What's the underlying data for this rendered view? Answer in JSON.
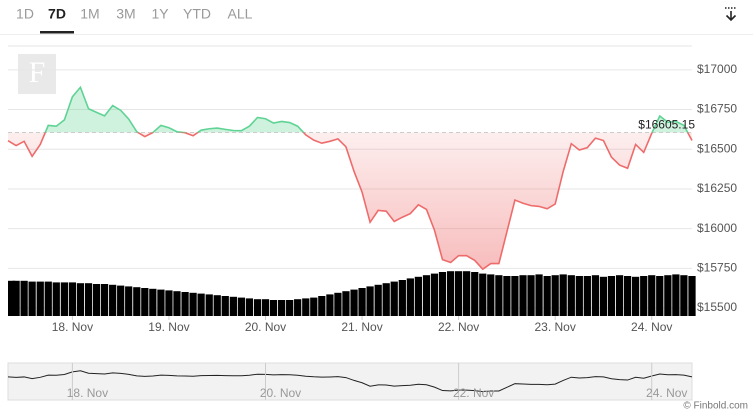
{
  "tabs": [
    "1D",
    "7D",
    "1M",
    "3M",
    "1Y",
    "YTD",
    "ALL"
  ],
  "selected_tab": 1,
  "logo": "F",
  "credit": "© Finbold.com",
  "chart_data": {
    "type": "line",
    "x": [
      17.333,
      17.417,
      17.5,
      17.583,
      17.667,
      17.75,
      17.833,
      17.917,
      18,
      18.083,
      18.167,
      18.25,
      18.333,
      18.417,
      18.5,
      18.583,
      18.667,
      18.75,
      18.833,
      18.917,
      19,
      19.083,
      19.167,
      19.25,
      19.333,
      19.417,
      19.5,
      19.583,
      19.667,
      19.75,
      19.833,
      19.917,
      20,
      20.083,
      20.167,
      20.25,
      20.333,
      20.417,
      20.5,
      20.583,
      20.667,
      20.75,
      20.833,
      20.917,
      21,
      21.083,
      21.167,
      21.25,
      21.333,
      21.417,
      21.5,
      21.583,
      21.667,
      21.75,
      21.833,
      21.917,
      22,
      22.083,
      22.167,
      22.25,
      22.333,
      22.417,
      22.5,
      22.583,
      22.667,
      22.75,
      22.833,
      22.917,
      23,
      23.083,
      23.167,
      23.25,
      23.333,
      23.417,
      23.5,
      23.583,
      23.667,
      23.75,
      23.833,
      23.917,
      24,
      24.083,
      24.167,
      24.25,
      24.333,
      24.417
    ],
    "series": [
      {
        "name": "Price",
        "color_up": "#5fd394",
        "color_down": "#ee6b6b",
        "values": [
          16554,
          16523,
          16550,
          16455,
          16530,
          16650,
          16645,
          16685,
          16830,
          16890,
          16755,
          16732,
          16710,
          16775,
          16745,
          16690,
          16610,
          16580,
          16605,
          16650,
          16635,
          16610,
          16604,
          16585,
          16620,
          16629,
          16633,
          16625,
          16618,
          16617,
          16645,
          16700,
          16692,
          16665,
          16675,
          16668,
          16645,
          16590,
          16557,
          16538,
          16550,
          16565,
          16515,
          16360,
          16230,
          16040,
          16115,
          16110,
          16045,
          16072,
          16095,
          16150,
          16121,
          15990,
          15805,
          15787,
          15830,
          15830,
          15800,
          15745,
          15780,
          15780,
          15980,
          16180,
          16160,
          16145,
          16140,
          16125,
          16155,
          16360,
          16535,
          16495,
          16510,
          16570,
          16555,
          16450,
          16400,
          16380,
          16530,
          16480,
          16600,
          16709,
          16670,
          16675,
          16650,
          16555
        ]
      },
      {
        "name": "Volume",
        "color": "#000000",
        "ylim": [
          0,
          100
        ],
        "values": [
          44,
          44,
          44,
          43,
          43,
          43,
          42,
          42,
          42,
          41,
          41,
          40,
          40,
          39,
          38,
          37,
          36,
          35,
          34,
          33,
          32,
          31,
          30,
          29,
          28,
          27,
          26,
          25,
          24,
          23,
          22,
          21,
          21,
          20,
          20,
          20,
          21,
          22,
          23,
          25,
          27,
          29,
          31,
          33,
          35,
          37,
          39,
          41,
          43,
          45,
          47,
          49,
          51,
          53,
          55,
          56,
          56,
          56,
          55,
          53,
          52,
          51,
          50,
          50,
          51,
          51,
          52,
          50,
          51,
          52,
          51,
          50,
          50,
          51,
          49,
          50,
          51,
          50,
          49,
          50,
          51,
          50,
          51,
          52,
          51,
          50
        ]
      }
    ],
    "baseline": {
      "value": 16605.15,
      "label": "$16605.15"
    },
    "xlim": [
      17.333,
      24.417
    ],
    "xticks": [
      {
        "value": 18,
        "label": "18. Nov"
      },
      {
        "value": 19,
        "label": "19. Nov"
      },
      {
        "value": 20,
        "label": "20. Nov"
      },
      {
        "value": 21,
        "label": "21. Nov"
      },
      {
        "value": 22,
        "label": "22. Nov"
      },
      {
        "value": 23,
        "label": "23. Nov"
      },
      {
        "value": 24,
        "label": "24. Nov"
      }
    ],
    "ylim": [
      15450,
      17150
    ],
    "yticks": [
      {
        "value": 15500,
        "label": "$15500"
      },
      {
        "value": 15750,
        "label": "$15750"
      },
      {
        "value": 16000,
        "label": "$16000"
      },
      {
        "value": 16250,
        "label": "$16250"
      },
      {
        "value": 16500,
        "label": "$16500"
      },
      {
        "value": 16750,
        "label": "$16750"
      },
      {
        "value": 17000,
        "label": "$17000"
      }
    ],
    "grid": true,
    "navigator": {
      "xticks": [
        {
          "value": 18,
          "label": "18. Nov"
        },
        {
          "value": 20,
          "label": "20. Nov"
        },
        {
          "value": 22,
          "label": "22. Nov"
        },
        {
          "value": 24,
          "label": "24. Nov"
        }
      ]
    }
  }
}
